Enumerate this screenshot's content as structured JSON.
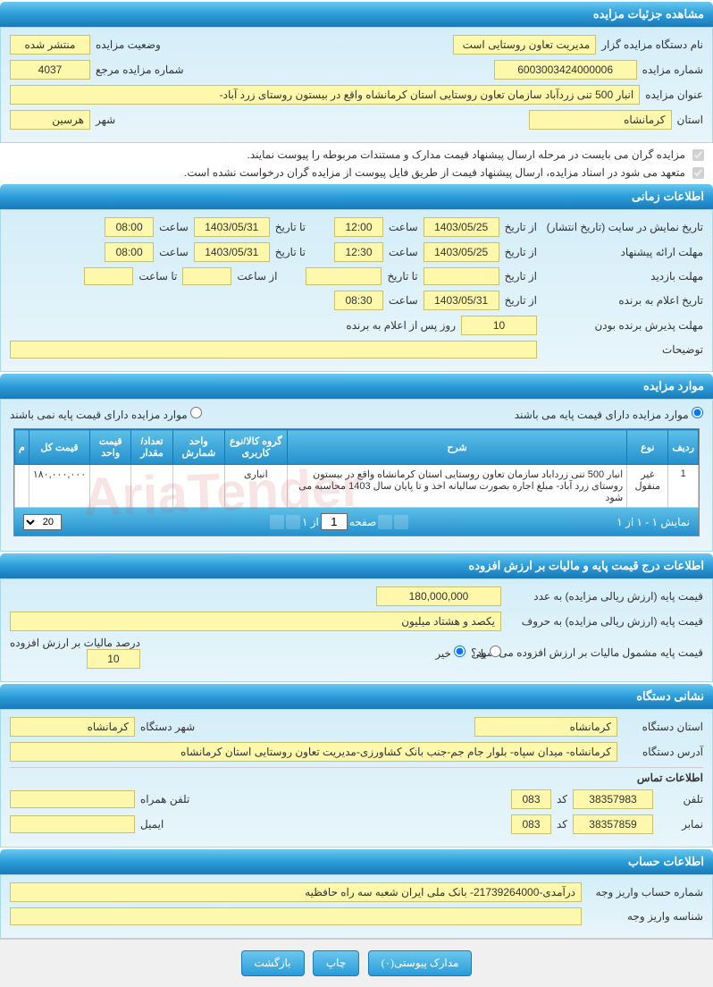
{
  "sections": {
    "details_header": "مشاهده جزئیات مزایده",
    "time_header": "اطلاعات زمانی",
    "items_header": "موارد مزایده",
    "price_header": "اطلاعات درج قیمت پایه و مالیات بر ارزش افزوده",
    "org_header": "نشانی دستگاه",
    "account_header": "اطلاعات حساب"
  },
  "details": {
    "org_label": "نام دستگاه مزایده گزار",
    "org_value": "مدیریت تعاون روستایی است",
    "status_label": "وضعیت مزایده",
    "status_value": "منتشر شده",
    "number_label": "شماره مزایده",
    "number_value": "6003003424000006",
    "ref_label": "شماره مزایده مرجع",
    "ref_value": "4037",
    "title_label": "عنوان مزایده",
    "title_value": "انبار 500 تنی زردآباد سازمان تعاون روستایی استان کرمانشاه واقع در بیستون روستای زرد آباد-",
    "province_label": "استان",
    "province_value": "کرمانشاه",
    "city_label": "شهر",
    "city_value": "هرسین",
    "check1": "مزایده گران می بایست در مرحله ارسال پیشنهاد قیمت مدارک و مستندات مربوطه را پیوست نمایند.",
    "check2": "متعهد می شود در اسناد مزایده، ارسال پیشنهاد قیمت از طریق فایل پیوست از مزایده گران درخواست نشده است."
  },
  "time": {
    "display_label": "تاریخ نمایش در سایت (تاریخ انتشار)",
    "from_label": "از تاریخ",
    "to_label": "تا تاریخ",
    "hour_label": "ساعت",
    "to_hour_label": "تا ساعت",
    "from_hour_label": "از ساعت",
    "display_from_date": "1403/05/25",
    "display_from_time": "12:00",
    "display_to_date": "1403/05/31",
    "display_to_time": "08:00",
    "offer_label": "مهلت ارائه پیشنهاد",
    "offer_from_date": "1403/05/25",
    "offer_from_time": "12:30",
    "offer_to_date": "1403/05/31",
    "offer_to_time": "08:00",
    "visit_label": "مهلت بازدید",
    "winner_label": "تاریخ اعلام به برنده",
    "winner_date": "1403/05/31",
    "winner_time": "08:30",
    "accept_label": "مهلت پذیرش برنده بودن",
    "accept_value": "10",
    "accept_suffix": "روز پس از اعلام به برنده",
    "desc_label": "توضیحات"
  },
  "items": {
    "has_base_label": "موارد مزایده دارای قیمت پایه می باشند",
    "no_base_label": "موارد مزایده دارای قیمت پایه نمی باشند",
    "columns": [
      "ردیف",
      "نوع",
      "شرح",
      "گروه کالا/نوع کاربری",
      "واحد شمارش",
      "تعداد/مقدار",
      "قیمت واحد",
      "قیمت کل",
      "م"
    ],
    "rows": [
      {
        "row": "1",
        "type": "غیر منقول",
        "desc": "انبار 500 تنی زرداباد سازمان تعاون روستایی استان کرمانشاه واقع در بیستون روستای زرد آباد- مبلغ اجاره بصورت سالیانه اخذ و تا پایان سال 1403 محاسبه می شود",
        "category": "انباری",
        "unit": "",
        "qty": "",
        "unit_price": "",
        "total_price": "١٨٠,٠٠٠,٠٠٠",
        "m": ""
      }
    ],
    "pager_display": "نمایش ۱ - ۱ از ۱",
    "pager_page_label": "صفحه",
    "pager_of_label": "از ۱",
    "pager_size": "20"
  },
  "price": {
    "base_num_label": "قیمت پایه (ارزش ریالی مزایده) به عدد",
    "base_num_value": "180,000,000",
    "base_word_label": "قیمت پایه (ارزش ریالی مزایده) به حروف",
    "base_word_value": "یکصد و هشتاد میلیون",
    "vat_q_label": "قیمت پایه مشمول مالیات بر ارزش افزوده می شود؟",
    "yes": "بلی",
    "no": "خیر",
    "vat_pct_label": "درصد مالیات بر ارزش افزوده",
    "vat_pct_value": "10"
  },
  "org": {
    "province_label": "استان دستگاه",
    "province_value": "کرمانشاه",
    "city_label": "شهر دستگاه",
    "city_value": "کرمانشاه",
    "address_label": "آدرس دستگاه",
    "address_value": "کرمانشاه- میدان سپاه- بلوار جام جم-جنب بانک کشاورزی-مدیریت تعاون روستایی استان کرمانشاه",
    "contact_header": "اطلاعات تماس",
    "phone_label": "تلفن",
    "phone_value": "38357983",
    "code_label": "کد",
    "code_value": "083",
    "mobile_label": "تلفن همراه",
    "fax_label": "نمابر",
    "fax_value": "38357859",
    "email_label": "ایمیل"
  },
  "account": {
    "number_label": "شماره حساب واریز وجه",
    "number_value": "درآمدی-21739264000- بانک ملی ایران شعبه سه راه حافظیه",
    "id_label": "شناسه واریز وجه"
  },
  "buttons": {
    "attachments": "مدارک پیوستی(۰)",
    "print": "چاپ",
    "back": "بازگشت"
  },
  "watermark": "AriaTender"
}
